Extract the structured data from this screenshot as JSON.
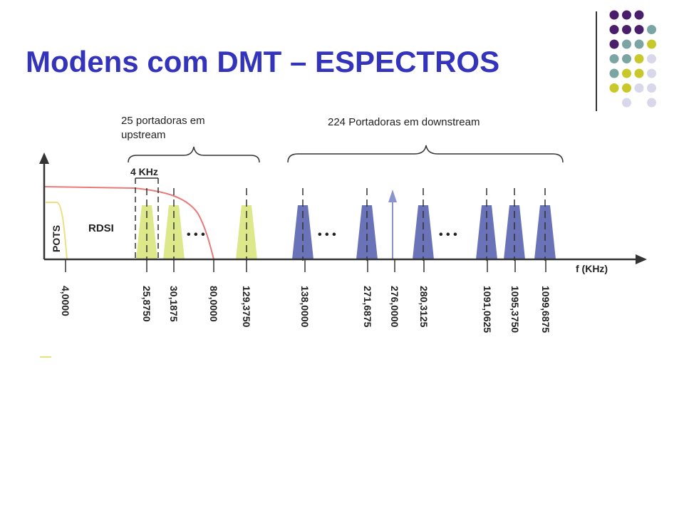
{
  "slide": {
    "title": "Modens com DMT – ESPECTROS",
    "title_color": "#3333bb"
  },
  "palette": {
    "purple": "#4b1e6b",
    "teal": "#7aa5a2",
    "yellow_green": "#c8c82a",
    "lavender": "#d8d8ea",
    "line": "#333333"
  },
  "dot_grid": [
    [
      "purple",
      "purple",
      "purple",
      null
    ],
    [
      "purple",
      "purple",
      "purple",
      "teal"
    ],
    [
      "purple",
      "teal",
      "teal",
      "yellow_green"
    ],
    [
      "teal",
      "teal",
      "yellow_green",
      "lavender"
    ],
    [
      "teal",
      "yellow_green",
      "yellow_green",
      "lavender"
    ],
    [
      "yellow_green",
      "yellow_green",
      "lavender",
      "lavender"
    ],
    [
      null,
      "lavender",
      null,
      "lavender"
    ]
  ],
  "diagram": {
    "upstream_label": [
      "25 portadoras em",
      "upstream"
    ],
    "downstream_label": "224 Portadoras em downstream",
    "spacing_label": "4 KHz",
    "pots_label": "POTS",
    "rdsi_label": "RDSI",
    "axis_label": "f (KHz)",
    "ellipsis": "• • •",
    "upstream_color": "#dde88a",
    "downstream_color": "#6a72b8",
    "pilot_color": "#8a94cc",
    "pots_color": "#ece080",
    "curve_color": "#e87a7a",
    "ticks": [
      "4,0000",
      "25,8750",
      "30,1875",
      "80,0000",
      "129,3750",
      "138,0000",
      "271,6875",
      "276,0000",
      "280,3125",
      "1091,0625",
      "1095,3750",
      "1099,6875"
    ]
  }
}
